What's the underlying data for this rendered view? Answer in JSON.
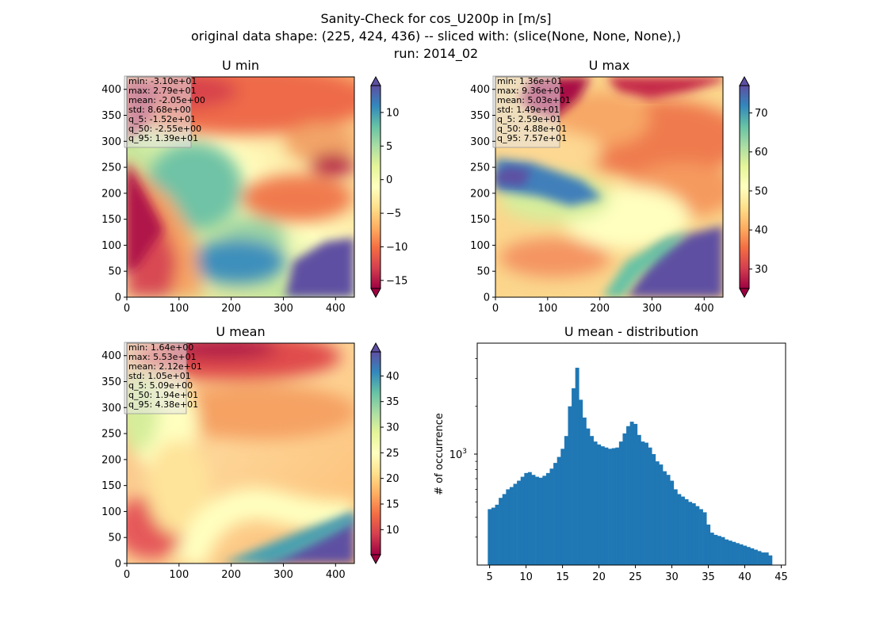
{
  "figure": {
    "title_lines": [
      "Sanity-Check for cos_U200p in [m/s]",
      "original data shape: (225, 424, 436) -- sliced with: (slice(None, None, None),)",
      "run: 2014_02"
    ]
  },
  "colors": {
    "spectral_stops": [
      "#9e0142",
      "#d53e4f",
      "#f46d43",
      "#fdae61",
      "#fee08b",
      "#ffffbf",
      "#e6f598",
      "#abdda4",
      "#66c2a5",
      "#3288bd",
      "#5e4fa2"
    ],
    "histogram_bar": "#1f77b4",
    "stats_box": "#e6e6e6"
  },
  "heatmaps": [
    {
      "title": "U min",
      "x_ticks": [
        "0",
        "100",
        "200",
        "300",
        "400"
      ],
      "y_ticks": [
        "0",
        "50",
        "100",
        "150",
        "200",
        "250",
        "300",
        "350",
        "400"
      ],
      "colorbar_ticks": [
        "−15",
        "−10",
        "−5",
        "0",
        "5",
        "10"
      ],
      "colorbar_range": [
        -16.2,
        14.0
      ],
      "stats": [
        "min: -3.10e+01",
        "max: 2.79e+01",
        "mean: -2.05e+00",
        "std: 8.68e+00",
        "q_5: -1.52e+01",
        "q_50: -2.55e+00",
        "q_95: 1.39e+01"
      ]
    },
    {
      "title": "U max",
      "x_ticks": [
        "0",
        "100",
        "200",
        "300",
        "400"
      ],
      "y_ticks": [
        "0",
        "50",
        "100",
        "150",
        "200",
        "250",
        "300",
        "350",
        "400"
      ],
      "colorbar_ticks": [
        "30",
        "40",
        "50",
        "60",
        "70"
      ],
      "colorbar_range": [
        25.0,
        77.0
      ],
      "stats": [
        "min: 1.36e+01",
        "max: 9.36e+01",
        "mean: 5.03e+01",
        "std: 1.49e+01",
        "q_5: 2.59e+01",
        "q_50: 4.88e+01",
        "q_95: 7.57e+01"
      ]
    },
    {
      "title": "U mean",
      "x_ticks": [
        "0",
        "100",
        "200",
        "300",
        "400"
      ],
      "y_ticks": [
        "0",
        "50",
        "100",
        "150",
        "200",
        "250",
        "300",
        "350",
        "400"
      ],
      "colorbar_ticks": [
        "10",
        "15",
        "20",
        "25",
        "30",
        "35",
        "40"
      ],
      "colorbar_range": [
        5.1,
        44.7
      ],
      "stats": [
        "min: 1.64e+00",
        "max: 5.53e+01",
        "mean: 2.12e+01",
        "std: 1.05e+01",
        "q_5: 5.09e+00",
        "q_50: 1.94e+01",
        "q_95: 4.38e+01"
      ]
    }
  ],
  "histogram": {
    "title": "U mean - distribution",
    "ylabel": "# of occurrence",
    "x_ticks": [
      "5",
      "10",
      "15",
      "20",
      "25",
      "30",
      "35",
      "40",
      "45"
    ],
    "y_tick_label": "10",
    "y_tick_exp": "3"
  },
  "chart_data": {
    "type": "bar",
    "title": "U mean - distribution",
    "xlabel": "",
    "ylabel": "# of occurrence",
    "y_scale": "log",
    "xlim": [
      3.3,
      45.6
    ],
    "ylim": [
      200,
      5000
    ],
    "bin_centers": [
      5,
      5.5,
      6,
      6.5,
      7,
      7.5,
      8,
      8.5,
      9,
      9.5,
      10,
      10.5,
      11,
      11.5,
      12,
      12.5,
      13,
      13.5,
      14,
      14.5,
      15,
      15.5,
      16,
      16.5,
      17,
      17.5,
      18,
      18.5,
      19,
      19.5,
      20,
      20.5,
      21,
      21.5,
      22,
      22.5,
      23,
      23.5,
      24,
      24.5,
      25,
      25.5,
      26,
      26.5,
      27,
      27.5,
      28,
      28.5,
      29,
      29.5,
      30,
      30.5,
      31,
      31.5,
      32,
      32.5,
      33,
      33.5,
      34,
      34.5,
      35,
      35.5,
      36,
      36.5,
      37,
      37.5,
      38,
      38.5,
      39,
      39.5,
      40,
      40.5,
      41,
      41.5,
      42,
      42.5,
      43,
      43.5
    ],
    "counts": [
      450,
      460,
      480,
      530,
      560,
      600,
      620,
      650,
      680,
      720,
      760,
      770,
      740,
      720,
      710,
      730,
      760,
      810,
      880,
      960,
      1080,
      1300,
      2000,
      2600,
      3500,
      2200,
      1700,
      1450,
      1300,
      1200,
      1150,
      1120,
      1100,
      1080,
      1090,
      1100,
      1200,
      1350,
      1500,
      1600,
      1550,
      1320,
      1200,
      1180,
      1100,
      1000,
      900,
      860,
      780,
      740,
      680,
      600,
      560,
      540,
      520,
      500,
      490,
      470,
      450,
      430,
      360,
      320,
      310,
      305,
      300,
      290,
      285,
      280,
      275,
      270,
      265,
      260,
      255,
      250,
      245,
      240,
      240,
      230
    ]
  }
}
